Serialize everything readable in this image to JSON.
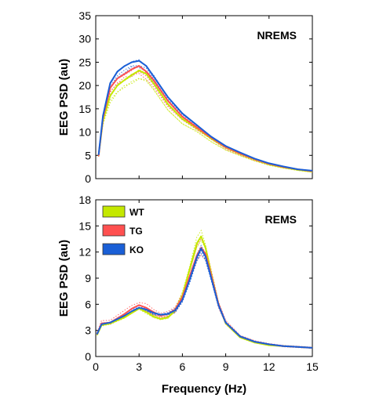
{
  "chart_data": [
    {
      "type": "line",
      "title": "NREMS",
      "xlabel": "",
      "ylabel": "EEG PSD (au)",
      "xlim": [
        0,
        15
      ],
      "ylim": [
        0,
        35
      ],
      "xticks": [
        0,
        3,
        6,
        9,
        12,
        15
      ],
      "xtick_labels": [
        "",
        "",
        "",
        "",
        "",
        ""
      ],
      "yticks": [
        0,
        5,
        10,
        15,
        20,
        25,
        30,
        35
      ],
      "ytick_labels": [
        "0",
        "5",
        "10",
        "15",
        "20",
        "25",
        "30",
        "35"
      ],
      "legend": false,
      "grid": false,
      "x": [
        0.2,
        0.5,
        1.0,
        1.5,
        2.0,
        2.5,
        3.0,
        3.5,
        4.0,
        5.0,
        6.0,
        7.0,
        8.0,
        9.0,
        10.0,
        11.0,
        12.0,
        13.0,
        14.0,
        15.0
      ],
      "series": [
        {
          "name": "WT",
          "color": "#c4e800",
          "values": [
            5.0,
            12.5,
            17.8,
            20.0,
            21.2,
            22.3,
            23.2,
            22.5,
            20.5,
            16.0,
            12.8,
            10.8,
            8.6,
            6.7,
            5.3,
            4.1,
            3.1,
            2.4,
            1.9,
            1.5
          ]
        },
        {
          "name": "TG",
          "color": "#ff5050",
          "values": [
            5.0,
            13.0,
            19.5,
            21.5,
            22.5,
            23.5,
            24.2,
            23.0,
            21.2,
            16.7,
            13.3,
            11.0,
            8.8,
            6.8,
            5.4,
            4.2,
            3.2,
            2.5,
            2.0,
            1.6
          ]
        },
        {
          "name": "KO",
          "color": "#1a5fd6",
          "values": [
            5.2,
            13.5,
            20.5,
            23.0,
            24.2,
            25.0,
            25.3,
            24.2,
            22.0,
            17.5,
            14.0,
            11.5,
            9.0,
            7.0,
            5.6,
            4.3,
            3.3,
            2.6,
            2.0,
            1.7
          ]
        }
      ]
    },
    {
      "type": "line",
      "title": "REMS",
      "xlabel": "Frequency (Hz)",
      "ylabel": "EEG PSD (au)",
      "xlim": [
        0,
        15
      ],
      "ylim": [
        0,
        18
      ],
      "xticks": [
        0,
        3,
        6,
        9,
        12,
        15
      ],
      "xtick_labels": [
        "0",
        "3",
        "6",
        "9",
        "12",
        "15"
      ],
      "yticks": [
        0,
        3,
        6,
        9,
        12,
        15,
        18
      ],
      "ytick_labels": [
        "0",
        "3",
        "6",
        "9",
        "12",
        "15",
        "18"
      ],
      "legend": true,
      "legend_position": "top-left",
      "grid": false,
      "x": [
        0.1,
        0.4,
        1.0,
        2.0,
        2.5,
        3.0,
        3.5,
        4.0,
        4.5,
        5.0,
        5.5,
        6.0,
        6.5,
        7.0,
        7.3,
        7.6,
        8.0,
        8.5,
        9.0,
        10.0,
        11.0,
        12.0,
        13.0,
        14.0,
        15.0
      ],
      "series": [
        {
          "name": "WT",
          "color": "#c4e800",
          "values": [
            2.5,
            3.6,
            3.8,
            4.5,
            5.0,
            5.5,
            5.1,
            4.6,
            4.3,
            4.5,
            5.3,
            7.0,
            10.0,
            13.0,
            13.8,
            12.5,
            9.5,
            6.0,
            3.8,
            2.2,
            1.6,
            1.3,
            1.2,
            1.1,
            1.0
          ]
        },
        {
          "name": "TG",
          "color": "#ff5050",
          "values": [
            2.6,
            3.8,
            3.9,
            4.9,
            5.5,
            5.9,
            5.6,
            5.1,
            4.7,
            4.9,
            5.4,
            6.8,
            9.2,
            11.6,
            12.5,
            11.8,
            9.3,
            6.0,
            3.9,
            2.3,
            1.7,
            1.4,
            1.2,
            1.1,
            1.0
          ]
        },
        {
          "name": "KO",
          "color": "#1a5fd6",
          "values": [
            2.6,
            3.7,
            3.9,
            4.7,
            5.2,
            5.6,
            5.4,
            5.0,
            4.8,
            4.9,
            5.3,
            6.5,
            8.8,
            11.4,
            12.4,
            11.5,
            9.0,
            5.9,
            3.9,
            2.3,
            1.7,
            1.4,
            1.2,
            1.1,
            1.0
          ]
        }
      ]
    }
  ]
}
